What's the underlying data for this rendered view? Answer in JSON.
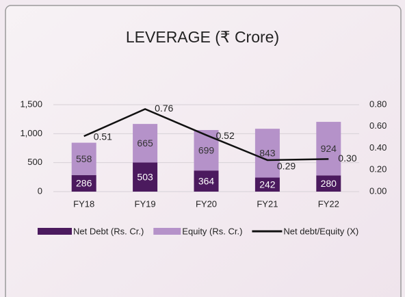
{
  "chart_data": {
    "type": "bar-line",
    "title": "LEVERAGE (₹ Crore)",
    "categories": [
      "FY18",
      "FY19",
      "FY20",
      "FY21",
      "FY22"
    ],
    "series": [
      {
        "name": "Net Debt (Rs. Cr.)",
        "color": "#4b1a5e",
        "values": [
          286,
          503,
          364,
          242,
          280
        ]
      },
      {
        "name": "Equity (Rs. Cr.)",
        "color": "#b592c9",
        "values": [
          558,
          665,
          699,
          843,
          924
        ]
      },
      {
        "name": "Net debt/Equity (X)",
        "color": "#111111",
        "axis": "y2",
        "values": [
          0.51,
          0.76,
          0.52,
          0.29,
          0.3
        ],
        "value_labels": [
          "0.51",
          "0.76",
          "0.52",
          "0.29",
          "0.30"
        ]
      }
    ],
    "ylim": [
      0,
      1500
    ],
    "yticks": [
      0,
      500,
      {
        "value": 1000,
        "label": "1,000"
      },
      {
        "value": 1500,
        "label": "1,500"
      }
    ],
    "y2lim": [
      0,
      0.8
    ],
    "y2ticks": [
      {
        "value": 0,
        "label": "0.00"
      },
      {
        "value": 0.2,
        "label": "0.20"
      },
      {
        "value": 0.4,
        "label": "0.40"
      },
      {
        "value": 0.6,
        "label": "0.60"
      },
      {
        "value": 0.8,
        "label": "0.80"
      }
    ],
    "grid": true
  }
}
